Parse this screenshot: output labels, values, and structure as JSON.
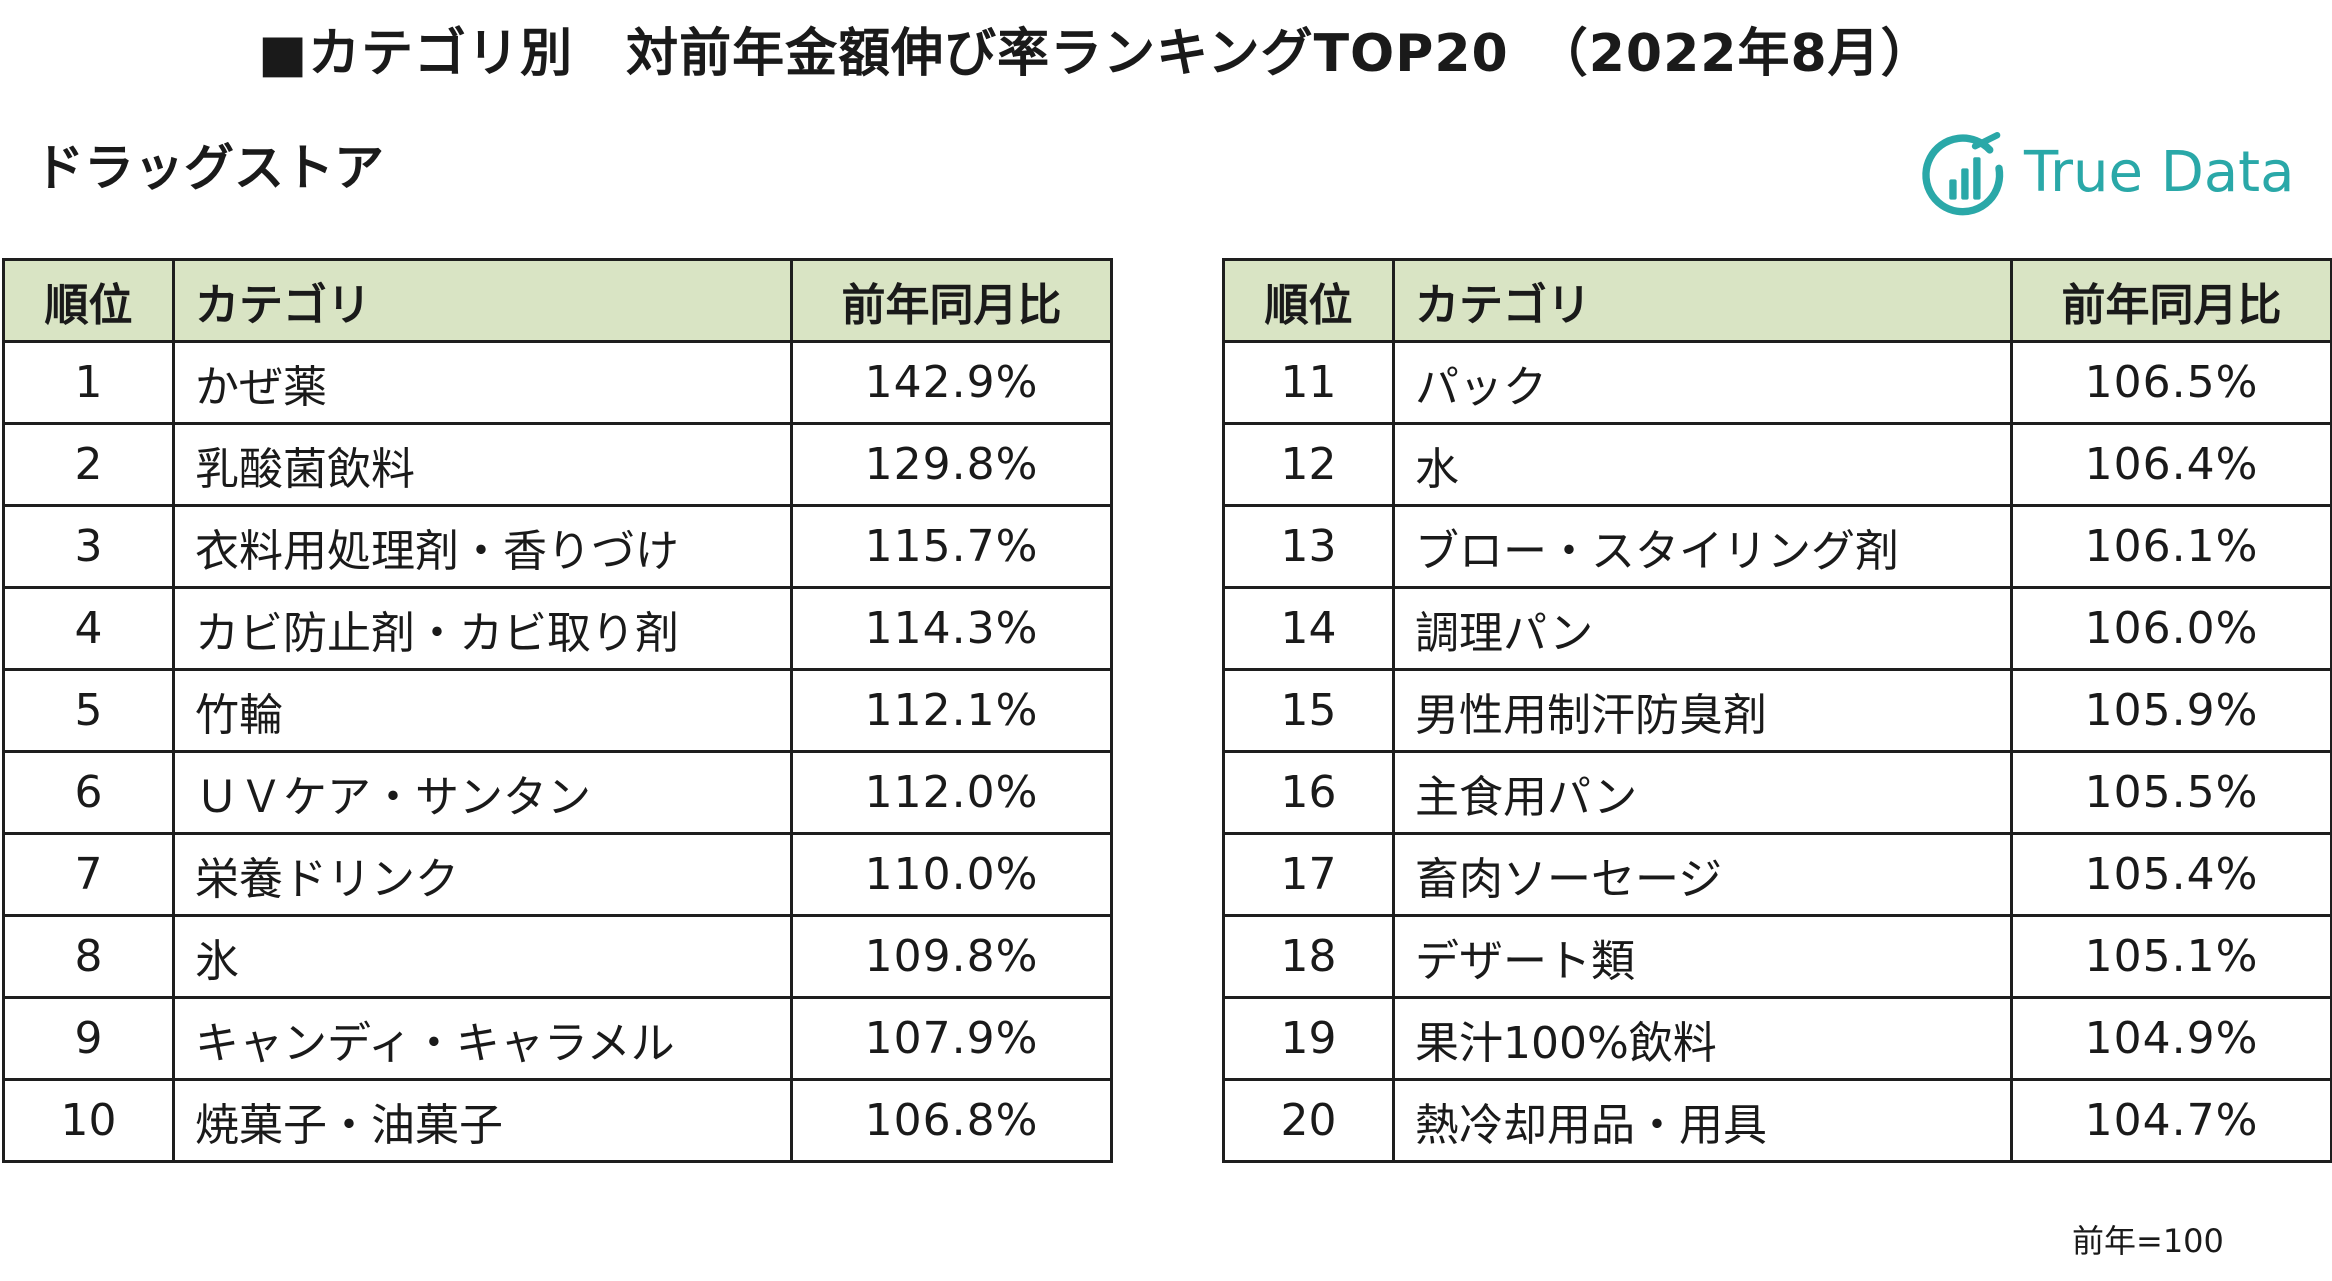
{
  "title": "■カテゴリ別　対前年金額伸び率ランキングTOP20　（2022年8月）",
  "subtitle": "ドラッグストア",
  "logo": {
    "text": "True Data",
    "color": "#2aa8a8"
  },
  "colors": {
    "header_bg": "#d9e4c4",
    "border": "#1e1e1e"
  },
  "table": {
    "headers": {
      "rank": "順位",
      "category": "カテゴリ",
      "ratio": "前年同月比"
    },
    "left_rows": [
      {
        "rank": "1",
        "category": "かぜ薬",
        "ratio": "142.9%"
      },
      {
        "rank": "2",
        "category": "乳酸菌飲料",
        "ratio": "129.8%"
      },
      {
        "rank": "3",
        "category": "衣料用処理剤・香りづけ",
        "ratio": "115.7%"
      },
      {
        "rank": "4",
        "category": "カビ防止剤・カビ取り剤",
        "ratio": "114.3%"
      },
      {
        "rank": "5",
        "category": "竹輪",
        "ratio": "112.1%"
      },
      {
        "rank": "6",
        "category": "ＵＶケア・サンタン",
        "ratio": "112.0%"
      },
      {
        "rank": "7",
        "category": "栄養ドリンク",
        "ratio": "110.0%"
      },
      {
        "rank": "8",
        "category": "氷",
        "ratio": "109.8%"
      },
      {
        "rank": "9",
        "category": "キャンディ・キャラメル",
        "ratio": "107.9%"
      },
      {
        "rank": "10",
        "category": "焼菓子・油菓子",
        "ratio": "106.8%"
      }
    ],
    "right_rows": [
      {
        "rank": "11",
        "category": "パック",
        "ratio": "106.5%"
      },
      {
        "rank": "12",
        "category": "水",
        "ratio": "106.4%"
      },
      {
        "rank": "13",
        "category": "ブロー・スタイリング剤",
        "ratio": "106.1%"
      },
      {
        "rank": "14",
        "category": "調理パン",
        "ratio": "106.0%"
      },
      {
        "rank": "15",
        "category": "男性用制汗防臭剤",
        "ratio": "105.9%"
      },
      {
        "rank": "16",
        "category": "主食用パン",
        "ratio": "105.5%"
      },
      {
        "rank": "17",
        "category": "畜肉ソーセージ",
        "ratio": "105.4%"
      },
      {
        "rank": "18",
        "category": "デザート類",
        "ratio": "105.1%"
      },
      {
        "rank": "19",
        "category": "果汁100%飲料",
        "ratio": "104.9%"
      },
      {
        "rank": "20",
        "category": "熱冷却用品・用具",
        "ratio": "104.7%"
      }
    ]
  },
  "note": "前年=100"
}
